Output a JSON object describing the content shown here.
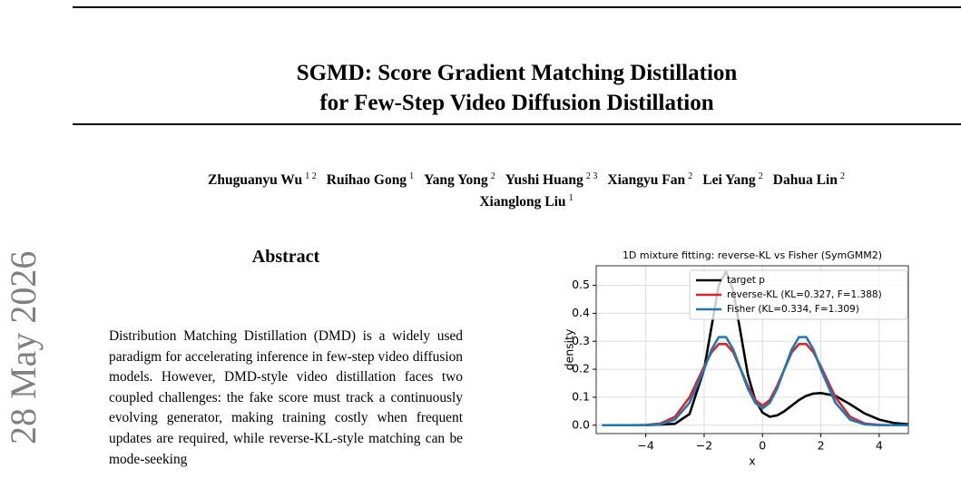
{
  "header": {
    "title": [
      "SGMD: Score Gradient Matching Distillation",
      "for Few-Step Video Diffusion Distillation"
    ]
  },
  "authors": [
    {
      "name": "Zhuguanyu Wu",
      "affil": "1 2"
    },
    {
      "name": "Ruihao Gong",
      "affil": "1"
    },
    {
      "name": "Yang Yong",
      "affil": "2"
    },
    {
      "name": "Yushi Huang",
      "affil": "2 3"
    },
    {
      "name": "Xiangyu Fan",
      "affil": "2"
    },
    {
      "name": "Lei Yang",
      "affil": "2"
    },
    {
      "name": "Dahua Lin",
      "affil": "2"
    },
    {
      "name": "Xianglong Liu",
      "affil": "1"
    }
  ],
  "stamp": "28 May 2026",
  "abstract": {
    "heading": "Abstract",
    "text": "Distribution Matching Distillation (DMD) is a widely used paradigm for accelerating inference in few-step video diffusion models. However, DMD-style video distillation faces two coupled challenges: the fake score must track a continuously evolving generator, making training costly when frequent updates are required, while reverse-KL-style matching can be mode-seeking"
  },
  "chart_data": {
    "type": "line",
    "title": "1D mixture fitting: reverse-KL vs Fisher (SymGMM2)",
    "x_label": "x",
    "y_label": "density",
    "x": [
      -5.5,
      -5,
      -4.5,
      -4,
      -3.5,
      -3,
      -2.5,
      -2,
      -1.75,
      -1.5,
      -1.25,
      -1,
      -0.75,
      -0.5,
      -0.25,
      0,
      0.25,
      0.5,
      0.75,
      1,
      1.25,
      1.5,
      1.75,
      2,
      2.5,
      3,
      3.5,
      4,
      4.5,
      5
    ],
    "series": [
      {
        "name": "target p",
        "color": "#000000",
        "values": [
          0,
          0,
          0,
          0,
          0.002,
          0.005,
          0.04,
          0.2,
          0.35,
          0.5,
          0.55,
          0.48,
          0.33,
          0.18,
          0.09,
          0.045,
          0.03,
          0.035,
          0.05,
          0.07,
          0.09,
          0.105,
          0.113,
          0.115,
          0.105,
          0.075,
          0.042,
          0.02,
          0.008,
          0.003
        ]
      },
      {
        "name": "reverse-KL (KL=0.327, F=1.388)",
        "color": "#d62728",
        "values": [
          0,
          0,
          0,
          0.001,
          0.006,
          0.03,
          0.1,
          0.21,
          0.26,
          0.29,
          0.29,
          0.26,
          0.2,
          0.14,
          0.09,
          0.07,
          0.09,
          0.14,
          0.2,
          0.26,
          0.29,
          0.29,
          0.26,
          0.21,
          0.1,
          0.03,
          0.006,
          0.001,
          0,
          0
        ]
      },
      {
        "name": "Fisher (KL=0.334, F=1.309)",
        "color": "#1f77b4",
        "values": [
          0,
          0,
          0,
          0,
          0.003,
          0.02,
          0.08,
          0.2,
          0.27,
          0.315,
          0.315,
          0.27,
          0.2,
          0.13,
          0.08,
          0.06,
          0.08,
          0.13,
          0.2,
          0.27,
          0.315,
          0.315,
          0.27,
          0.2,
          0.08,
          0.02,
          0.003,
          0,
          0,
          0
        ]
      }
    ],
    "xlim": [
      -5.7,
      5.0
    ],
    "ylim": [
      -0.03,
      0.57
    ],
    "xticks": [
      {
        "value": -4,
        "label": "−4"
      },
      {
        "value": -2,
        "label": "−2"
      },
      0,
      2,
      4
    ],
    "yticks": [
      {
        "value": 0,
        "label": "0.0"
      },
      0.1,
      0.2,
      0.3,
      0.4,
      0.5
    ],
    "grid": true,
    "legend": "upper right"
  }
}
